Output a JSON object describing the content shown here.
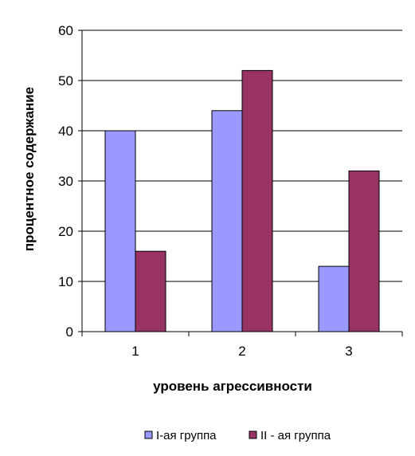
{
  "chart_data": {
    "type": "bar",
    "categories": [
      "1",
      "2",
      "3"
    ],
    "series": [
      {
        "name": "I-ая группа",
        "values": [
          40,
          44,
          13
        ],
        "color": "#9999FF"
      },
      {
        "name": "II - ая группа",
        "values": [
          16,
          52,
          32
        ],
        "color": "#993366"
      }
    ],
    "xlabel": "уровень агрессивности",
    "ylabel": "процентное содержание",
    "ylim": [
      0,
      60
    ],
    "yticks": [
      0,
      10,
      20,
      30,
      40,
      50,
      60
    ],
    "grid": true,
    "legend_position": "bottom"
  }
}
